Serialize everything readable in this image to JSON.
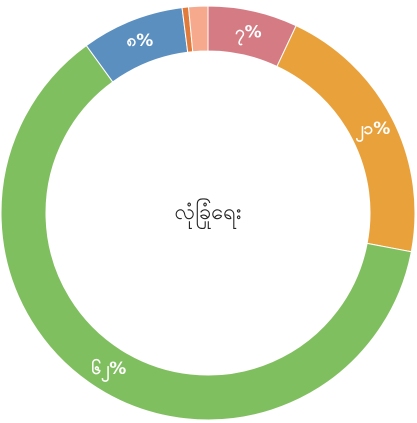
{
  "chart_data": {
    "type": "donut",
    "center_label": "လုံခြုံရေး",
    "categories": [
      null,
      null,
      null,
      null,
      null,
      null
    ],
    "values": [
      7,
      21,
      62,
      8,
      0.5,
      1.5
    ],
    "value_labels": [
      "၇%",
      "၂၁%",
      "၆၂%",
      "၈%",
      null,
      null
    ],
    "colors": [
      "#d57b83",
      "#e9a23b",
      "#80bf5f",
      "#5b8fc0",
      "#e07b3c",
      "#f6a98c"
    ]
  }
}
